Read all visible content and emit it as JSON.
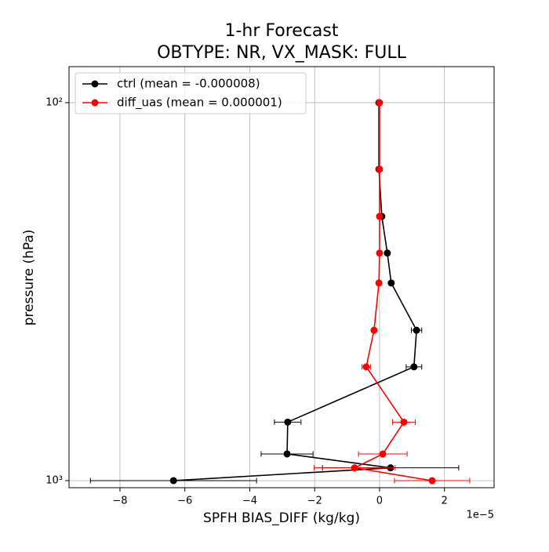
{
  "chart_data": {
    "type": "profile",
    "title": "1-hr Forecast",
    "subtitle": "OBTYPE: NR,  VX_MASK: FULL",
    "x_label": "SPFH BIAS_DIFF (kg/kg)",
    "y_label": "pressure (hPa)",
    "x_offset_label": "1e−5",
    "y": [
      100,
      150,
      200,
      250,
      300,
      400,
      500,
      700,
      850,
      925,
      1000
    ],
    "series": [
      {
        "name": "ctrl (mean = -0.000008)",
        "color": "#000000",
        "values": [
          -0.02,
          -0.02,
          0.07,
          0.24,
          0.36,
          1.14,
          1.06,
          -2.83,
          -2.85,
          0.34,
          -6.35
        ],
        "errors": [
          0,
          0,
          0,
          0,
          0,
          0.16,
          0.24,
          0.41,
          0.8,
          2.1,
          2.56
        ]
      },
      {
        "name": "diff_uas (mean = 0.000001)",
        "color": "#ff0000",
        "values": [
          0,
          0,
          0,
          0,
          -0.02,
          -0.17,
          -0.41,
          0.75,
          0.1,
          -0.77,
          1.62
        ],
        "errors": [
          0,
          0,
          0,
          0,
          0,
          0,
          0.13,
          0.35,
          0.75,
          1.25,
          1.16
        ]
      }
    ],
    "xlim": [
      -9.57,
      3.53
    ],
    "xticks": [
      {
        "value": -8,
        "label": "−8"
      },
      {
        "value": -6,
        "label": "−6"
      },
      {
        "value": -4,
        "label": "−4"
      },
      {
        "value": -2,
        "label": "−2"
      },
      0,
      2
    ],
    "ylim": [
      1044,
      80.3
    ],
    "yticks": [
      {
        "value": 100,
        "label": "10²"
      },
      {
        "value": 1000,
        "label": "10³"
      }
    ],
    "y_log": true,
    "grid": true,
    "legend": "upper left"
  }
}
